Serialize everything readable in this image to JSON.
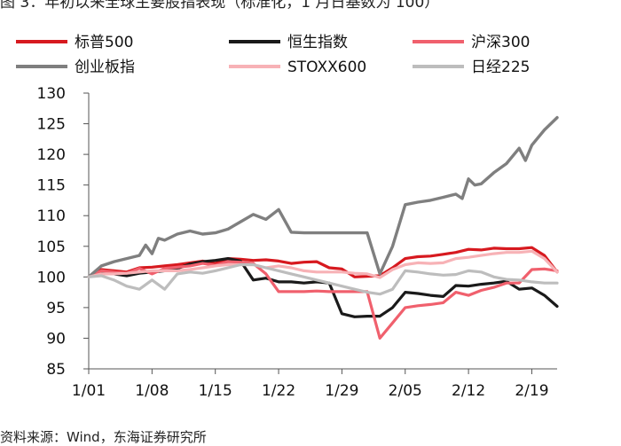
{
  "figure": {
    "caption_top": "图 3：年初以来全球主要股指表现（标准化，1 月日基数为 100）",
    "caption_bottom": "资料来源：Wind，东海证券研究所"
  },
  "chart_data": {
    "type": "line",
    "xlabel": "",
    "ylabel": "",
    "ylim": [
      85,
      130
    ],
    "yticks": [
      85,
      90,
      95,
      100,
      105,
      110,
      115,
      120,
      125,
      130
    ],
    "xlim": [
      0,
      37
    ],
    "xticks": [
      {
        "label": "1/01",
        "x": 0
      },
      {
        "label": "1/08",
        "x": 5
      },
      {
        "label": "1/15",
        "x": 10
      },
      {
        "label": "1/22",
        "x": 15
      },
      {
        "label": "1/29",
        "x": 20
      },
      {
        "label": "2/05",
        "x": 25
      },
      {
        "label": "2/12",
        "x": 30
      },
      {
        "label": "2/19",
        "x": 35
      }
    ],
    "grid": false,
    "legend_position": "top",
    "series": [
      {
        "name": "标普500",
        "color": "#d7191f",
        "width": 3.2,
        "x": [
          0,
          1,
          2,
          3,
          4,
          5,
          6,
          7,
          8,
          9,
          10,
          11,
          12,
          13,
          14,
          15,
          16,
          17,
          18,
          19,
          20,
          21,
          22,
          23,
          24,
          25,
          26,
          27,
          28,
          29,
          30,
          31,
          32,
          33,
          34,
          35,
          36,
          37
        ],
        "values": [
          100,
          101.2,
          101.0,
          100.8,
          101.5,
          101.6,
          101.8,
          102.0,
          102.3,
          102.6,
          102.2,
          103.0,
          102.9,
          102.7,
          102.8,
          102.6,
          102.2,
          102.4,
          102.5,
          101.5,
          101.3,
          100.0,
          100.1,
          100.2,
          101.5,
          103.0,
          103.3,
          103.4,
          103.7,
          104.0,
          104.5,
          104.4,
          104.7,
          104.6,
          104.6,
          104.8,
          103.5,
          100.8
        ]
      },
      {
        "name": "恒生指数",
        "color": "#1a1a1a",
        "width": 3.2,
        "x": [
          0,
          1,
          2,
          3,
          4,
          5,
          6,
          7,
          8,
          9,
          10,
          11,
          12,
          13,
          14,
          15,
          16,
          17,
          18,
          19,
          20,
          21,
          22,
          23,
          24,
          25,
          26,
          27,
          28,
          29,
          30,
          31,
          32,
          33,
          34,
          35,
          36,
          37
        ],
        "values": [
          100,
          100.8,
          100.5,
          100.2,
          100.6,
          100.8,
          101.0,
          101.4,
          102.1,
          102.5,
          102.7,
          103.0,
          102.6,
          99.5,
          99.8,
          99.2,
          99.2,
          99.0,
          99.2,
          99.0,
          94.0,
          93.5,
          93.6,
          93.6,
          95.0,
          97.5,
          97.3,
          97.0,
          96.8,
          98.6,
          98.5,
          98.8,
          99.0,
          99.3,
          98.0,
          98.2,
          97.0,
          95.2
        ]
      },
      {
        "name": "沪深300",
        "color": "#f0606d",
        "width": 3.2,
        "x": [
          0,
          1,
          2,
          3,
          4,
          5,
          6,
          7,
          8,
          9,
          10,
          11,
          12,
          13,
          14,
          15,
          16,
          17,
          18,
          19,
          20,
          21,
          22,
          23,
          24,
          25,
          26,
          27,
          28,
          29,
          30,
          31,
          32,
          33,
          34,
          35,
          36,
          37
        ],
        "values": [
          100,
          101.0,
          100.8,
          100.6,
          101.4,
          100.5,
          101.4,
          101.6,
          101.8,
          102.2,
          101.9,
          102.5,
          102.4,
          102.2,
          100.5,
          97.6,
          97.6,
          97.6,
          97.7,
          97.6,
          97.6,
          97.6,
          97.6,
          90.0,
          92.5,
          95.0,
          95.3,
          95.5,
          95.8,
          97.5,
          97.0,
          97.8,
          98.3,
          99.0,
          99.0,
          101.2,
          101.3,
          101.0
        ]
      },
      {
        "name": "创业板指",
        "color": "#7f7f7f",
        "width": 3.4,
        "x": [
          0,
          1,
          2,
          3,
          4,
          4.5,
          5,
          5.5,
          6,
          7,
          8,
          9,
          10,
          11,
          12,
          13,
          14,
          15,
          16,
          17,
          18,
          19,
          20,
          21,
          22,
          23,
          24,
          25,
          26,
          27,
          28,
          29,
          29.5,
          30,
          30.5,
          31,
          32,
          33,
          34,
          34.5,
          35,
          36,
          37
        ],
        "values": [
          100,
          101.8,
          102.5,
          103.0,
          103.5,
          105.2,
          103.8,
          106.3,
          106.0,
          107.0,
          107.5,
          107.0,
          107.2,
          107.8,
          109.0,
          110.2,
          109.4,
          111.0,
          107.3,
          107.2,
          107.2,
          107.2,
          107.2,
          107.2,
          107.2,
          100.5,
          105.0,
          111.8,
          112.2,
          112.5,
          113.0,
          113.5,
          112.8,
          116.0,
          115.0,
          115.2,
          117.0,
          118.5,
          121.0,
          119.0,
          121.5,
          124.0,
          126.0
        ]
      },
      {
        "name": "STOXX600",
        "color": "#f7b2b6",
        "width": 3.2,
        "x": [
          0,
          1,
          2,
          3,
          4,
          5,
          6,
          7,
          8,
          9,
          10,
          11,
          12,
          13,
          14,
          15,
          16,
          17,
          18,
          19,
          20,
          21,
          22,
          23,
          24,
          25,
          26,
          27,
          28,
          29,
          30,
          31,
          32,
          33,
          34,
          35,
          36,
          37
        ],
        "values": [
          100,
          100.5,
          100.5,
          100.6,
          100.8,
          101.0,
          101.0,
          101.0,
          101.2,
          101.5,
          101.8,
          102.0,
          102.0,
          102.0,
          101.5,
          101.8,
          101.5,
          101.0,
          100.8,
          100.8,
          100.8,
          100.6,
          100.5,
          99.9,
          101.2,
          102.0,
          102.3,
          102.2,
          102.3,
          103.0,
          103.2,
          103.5,
          103.8,
          104.0,
          104.0,
          104.2,
          103.0,
          100.8
        ]
      },
      {
        "name": "日经225",
        "color": "#bdbdbd",
        "width": 3.2,
        "x": [
          0,
          1,
          2,
          3,
          4,
          5,
          6,
          7,
          8,
          9,
          10,
          11,
          12,
          13,
          14,
          15,
          16,
          17,
          18,
          19,
          20,
          21,
          22,
          23,
          24,
          25,
          26,
          27,
          28,
          29,
          30,
          31,
          32,
          33,
          34,
          35,
          36,
          37
        ],
        "values": [
          100,
          100.2,
          99.5,
          98.5,
          98.0,
          99.5,
          98.0,
          100.5,
          100.8,
          100.6,
          101.0,
          101.5,
          102.0,
          102.0,
          101.5,
          101.0,
          100.5,
          100.0,
          99.5,
          99.0,
          98.5,
          98.0,
          97.5,
          97.2,
          98.0,
          101.0,
          100.8,
          100.5,
          100.3,
          100.4,
          101.0,
          100.8,
          100.0,
          99.6,
          99.5,
          99.2,
          99.0,
          99.0
        ]
      }
    ]
  }
}
